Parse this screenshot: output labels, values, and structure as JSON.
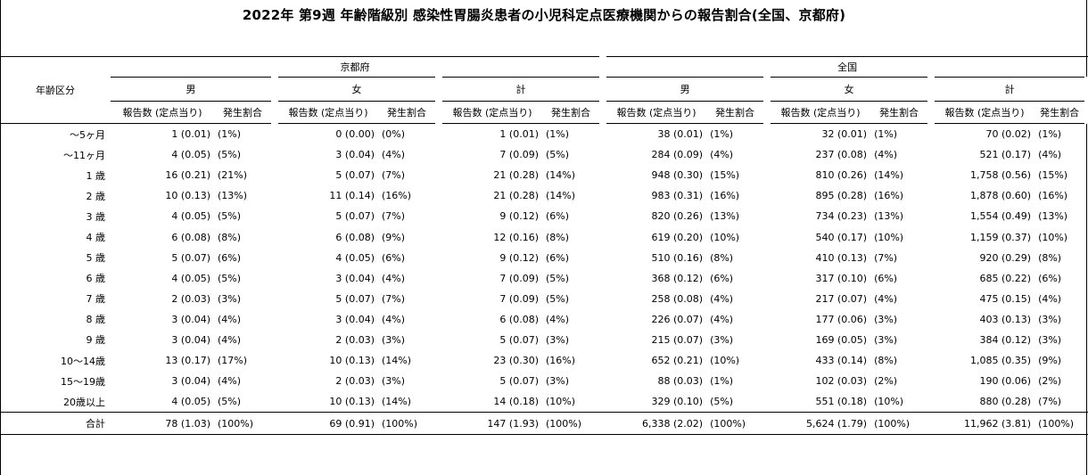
{
  "title": "2022年 第9週 年齢階級別 感染性胃腸炎患者の小児科定点医療機関からの報告割合(全国、京都府)",
  "header": {
    "age_label": "年齢区分",
    "regions": [
      "京都府",
      "全国"
    ],
    "sexes": [
      "男",
      "女",
      "計"
    ],
    "count_label": "報告数 (定点当り)",
    "rate_label": "発生割合"
  },
  "rows": [
    {
      "label": "〜5ヶ月",
      "cells": [
        [
          "1 (0.01)",
          "(1%)"
        ],
        [
          "0 (0.00)",
          "(0%)"
        ],
        [
          "1 (0.01)",
          "(1%)"
        ],
        [
          "38 (0.01)",
          "(1%)"
        ],
        [
          "32 (0.01)",
          "(1%)"
        ],
        [
          "70 (0.02)",
          "(1%)"
        ]
      ]
    },
    {
      "label": "〜11ヶ月",
      "cells": [
        [
          "4 (0.05)",
          "(5%)"
        ],
        [
          "3 (0.04)",
          "(4%)"
        ],
        [
          "7 (0.09)",
          "(5%)"
        ],
        [
          "284 (0.09)",
          "(4%)"
        ],
        [
          "237 (0.08)",
          "(4%)"
        ],
        [
          "521 (0.17)",
          "(4%)"
        ]
      ]
    },
    {
      "label": "1 歳",
      "cells": [
        [
          "16 (0.21)",
          "(21%)"
        ],
        [
          "5 (0.07)",
          "(7%)"
        ],
        [
          "21 (0.28)",
          "(14%)"
        ],
        [
          "948 (0.30)",
          "(15%)"
        ],
        [
          "810 (0.26)",
          "(14%)"
        ],
        [
          "1,758 (0.56)",
          "(15%)"
        ]
      ]
    },
    {
      "label": "2 歳",
      "cells": [
        [
          "10 (0.13)",
          "(13%)"
        ],
        [
          "11 (0.14)",
          "(16%)"
        ],
        [
          "21 (0.28)",
          "(14%)"
        ],
        [
          "983 (0.31)",
          "(16%)"
        ],
        [
          "895 (0.28)",
          "(16%)"
        ],
        [
          "1,878 (0.60)",
          "(16%)"
        ]
      ]
    },
    {
      "label": "3 歳",
      "cells": [
        [
          "4 (0.05)",
          "(5%)"
        ],
        [
          "5 (0.07)",
          "(7%)"
        ],
        [
          "9 (0.12)",
          "(6%)"
        ],
        [
          "820 (0.26)",
          "(13%)"
        ],
        [
          "734 (0.23)",
          "(13%)"
        ],
        [
          "1,554 (0.49)",
          "(13%)"
        ]
      ]
    },
    {
      "label": "4 歳",
      "cells": [
        [
          "6 (0.08)",
          "(8%)"
        ],
        [
          "6 (0.08)",
          "(9%)"
        ],
        [
          "12 (0.16)",
          "(8%)"
        ],
        [
          "619 (0.20)",
          "(10%)"
        ],
        [
          "540 (0.17)",
          "(10%)"
        ],
        [
          "1,159 (0.37)",
          "(10%)"
        ]
      ]
    },
    {
      "label": "5 歳",
      "cells": [
        [
          "5 (0.07)",
          "(6%)"
        ],
        [
          "4 (0.05)",
          "(6%)"
        ],
        [
          "9 (0.12)",
          "(6%)"
        ],
        [
          "510 (0.16)",
          "(8%)"
        ],
        [
          "410 (0.13)",
          "(7%)"
        ],
        [
          "920 (0.29)",
          "(8%)"
        ]
      ]
    },
    {
      "label": "6 歳",
      "cells": [
        [
          "4 (0.05)",
          "(5%)"
        ],
        [
          "3 (0.04)",
          "(4%)"
        ],
        [
          "7 (0.09)",
          "(5%)"
        ],
        [
          "368 (0.12)",
          "(6%)"
        ],
        [
          "317 (0.10)",
          "(6%)"
        ],
        [
          "685 (0.22)",
          "(6%)"
        ]
      ]
    },
    {
      "label": "7 歳",
      "cells": [
        [
          "2 (0.03)",
          "(3%)"
        ],
        [
          "5 (0.07)",
          "(7%)"
        ],
        [
          "7 (0.09)",
          "(5%)"
        ],
        [
          "258 (0.08)",
          "(4%)"
        ],
        [
          "217 (0.07)",
          "(4%)"
        ],
        [
          "475 (0.15)",
          "(4%)"
        ]
      ]
    },
    {
      "label": "8 歳",
      "cells": [
        [
          "3 (0.04)",
          "(4%)"
        ],
        [
          "3 (0.04)",
          "(4%)"
        ],
        [
          "6 (0.08)",
          "(4%)"
        ],
        [
          "226 (0.07)",
          "(4%)"
        ],
        [
          "177 (0.06)",
          "(3%)"
        ],
        [
          "403 (0.13)",
          "(3%)"
        ]
      ]
    },
    {
      "label": "9 歳",
      "cells": [
        [
          "3 (0.04)",
          "(4%)"
        ],
        [
          "2 (0.03)",
          "(3%)"
        ],
        [
          "5 (0.07)",
          "(3%)"
        ],
        [
          "215 (0.07)",
          "(3%)"
        ],
        [
          "169 (0.05)",
          "(3%)"
        ],
        [
          "384 (0.12)",
          "(3%)"
        ]
      ]
    },
    {
      "label": "10〜14歳",
      "cells": [
        [
          "13 (0.17)",
          "(17%)"
        ],
        [
          "10 (0.13)",
          "(14%)"
        ],
        [
          "23 (0.30)",
          "(16%)"
        ],
        [
          "652 (0.21)",
          "(10%)"
        ],
        [
          "433 (0.14)",
          "(8%)"
        ],
        [
          "1,085 (0.35)",
          "(9%)"
        ]
      ]
    },
    {
      "label": "15〜19歳",
      "cells": [
        [
          "3 (0.04)",
          "(4%)"
        ],
        [
          "2 (0.03)",
          "(3%)"
        ],
        [
          "5 (0.07)",
          "(3%)"
        ],
        [
          "88 (0.03)",
          "(1%)"
        ],
        [
          "102 (0.03)",
          "(2%)"
        ],
        [
          "190 (0.06)",
          "(2%)"
        ]
      ]
    },
    {
      "label": "20歳以上",
      "cells": [
        [
          "4 (0.05)",
          "(5%)"
        ],
        [
          "10 (0.13)",
          "(14%)"
        ],
        [
          "14 (0.18)",
          "(10%)"
        ],
        [
          "329 (0.10)",
          "(5%)"
        ],
        [
          "551 (0.18)",
          "(10%)"
        ],
        [
          "880 (0.28)",
          "(7%)"
        ]
      ]
    }
  ],
  "total": {
    "label": "合計",
    "cells": [
      [
        "78 (1.03)",
        "(100%)"
      ],
      [
        "69 (0.91)",
        "(100%)"
      ],
      [
        "147 (1.93)",
        "(100%)"
      ],
      [
        "6,338 (2.02)",
        "(100%)"
      ],
      [
        "5,624 (1.79)",
        "(100%)"
      ],
      [
        "11,962 (3.81)",
        "(100%)"
      ]
    ]
  }
}
